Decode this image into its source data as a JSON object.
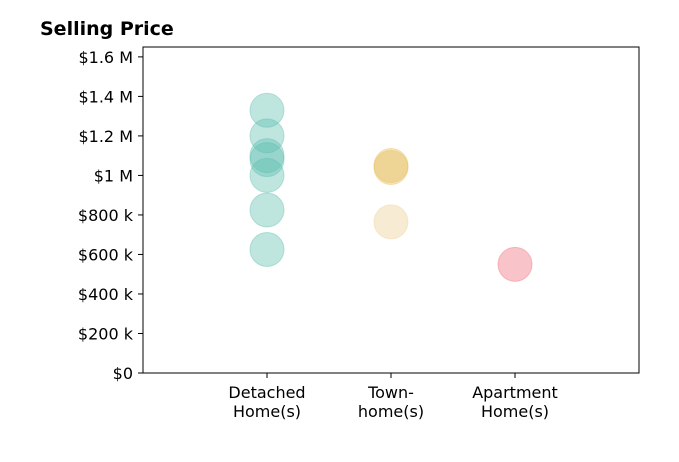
{
  "chart_data": {
    "type": "scatter",
    "title": "Selling Price",
    "xlabel": "",
    "ylabel": "",
    "categories": [
      {
        "lines": [
          "Detached",
          "Home(s)"
        ]
      },
      {
        "lines": [
          "Town-",
          "home(s)"
        ]
      },
      {
        "lines": [
          "Apartment",
          "Home(s)"
        ]
      }
    ],
    "xlim": [
      -1,
      3
    ],
    "ylim": [
      0,
      1650000
    ],
    "yticks": [
      0,
      200000,
      400000,
      600000,
      800000,
      1000000,
      1200000,
      1400000,
      1600000
    ],
    "ytick_labels": [
      "$0",
      "$200 k",
      "$400 k",
      "$600 k",
      "$800 k",
      "$1 M",
      "$1.2 M",
      "$1.4 M",
      "$1.6 M"
    ],
    "grid": false,
    "marker_alpha": 0.4,
    "points": [
      {
        "category": 0,
        "y": 1330000,
        "color": "#5fbfb0"
      },
      {
        "category": 0,
        "y": 1200000,
        "color": "#5fbfb0"
      },
      {
        "category": 0,
        "y": 1100000,
        "color": "#5fbfb0"
      },
      {
        "category": 0,
        "y": 1080000,
        "color": "#5fbfb0"
      },
      {
        "category": 0,
        "y": 1000000,
        "color": "#5fbfb0"
      },
      {
        "category": 0,
        "y": 825000,
        "color": "#5fbfb0"
      },
      {
        "category": 0,
        "y": 625000,
        "color": "#5fbfb0"
      },
      {
        "category": 1,
        "y": 1050000,
        "color": "#e6bd5a"
      },
      {
        "category": 1,
        "y": 1040000,
        "color": "#e6bd5a"
      },
      {
        "category": 1,
        "y": 765000,
        "color": "#ecd092"
      },
      {
        "category": 2,
        "y": 550000,
        "color": "#ef6b78"
      }
    ]
  }
}
